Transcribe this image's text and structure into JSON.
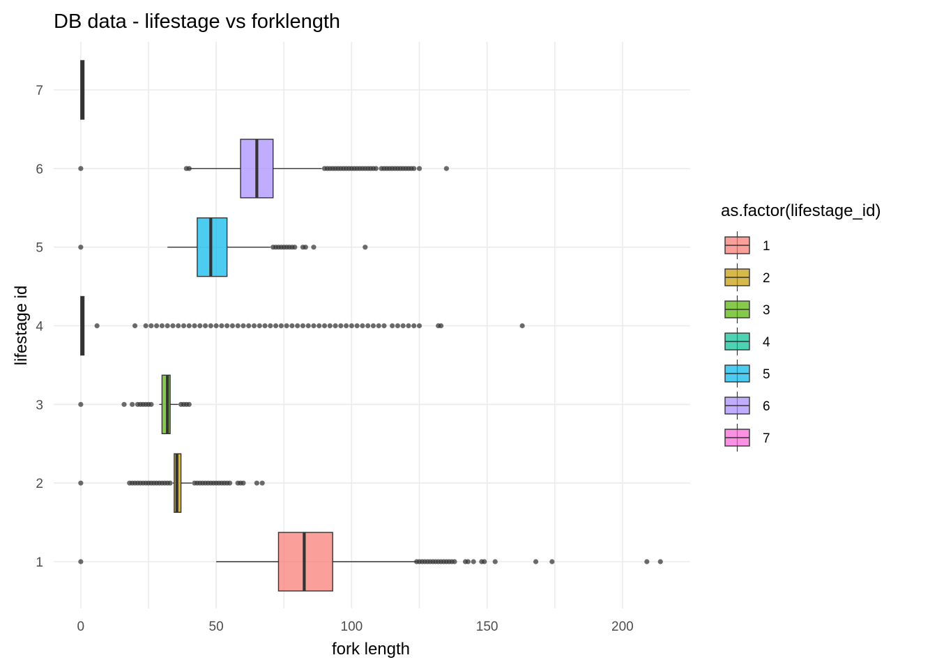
{
  "chart_data": {
    "type": "boxplot",
    "orientation": "horizontal",
    "title": "DB data - lifestage vs forklength",
    "xlabel": "fork length",
    "ylabel": "lifestage id",
    "xlim": [
      -10,
      225
    ],
    "x_ticks": [
      0,
      50,
      100,
      150,
      200
    ],
    "categories": [
      "1",
      "2",
      "3",
      "4",
      "5",
      "6",
      "7"
    ],
    "legend": {
      "title": "as.factor(lifestage_id)",
      "position": "right",
      "entries": [
        "1",
        "2",
        "3",
        "4",
        "5",
        "6",
        "7"
      ]
    },
    "grid": true,
    "series": [
      {
        "category": "1",
        "color": "#F8766D",
        "whisker_low": 50,
        "q1": 73,
        "median": 82.5,
        "q3": 93,
        "whisker_high": 124,
        "outliers": [
          0,
          124,
          125,
          126,
          127,
          128,
          129,
          130,
          131,
          132,
          133,
          134,
          135,
          136,
          137,
          138,
          142,
          143,
          145,
          148,
          149,
          153,
          168,
          174,
          209,
          214
        ]
      },
      {
        "category": "2",
        "color": "#C49A00",
        "whisker_low": 34,
        "q1": 34.5,
        "median": 35.5,
        "q3": 37,
        "whisker_high": 41,
        "outliers": [
          0,
          18,
          19,
          20,
          21,
          22,
          23,
          24,
          25,
          26,
          27,
          28,
          29,
          30,
          31,
          32,
          33,
          42,
          43,
          44,
          45,
          46,
          47,
          48,
          49,
          50,
          51,
          52,
          53,
          54,
          55,
          58,
          59,
          60,
          65,
          67
        ]
      },
      {
        "category": "3",
        "color": "#53B400",
        "whisker_low": 29,
        "q1": 30,
        "median": 32,
        "q3": 33,
        "whisker_high": 36,
        "outliers": [
          0,
          16,
          19,
          21,
          22,
          23,
          24,
          25,
          26,
          37,
          38,
          39,
          40
        ]
      },
      {
        "category": "4",
        "color": "#00C094",
        "whisker_low": 0,
        "q1": 0,
        "median": 0.6,
        "q3": 1.2,
        "whisker_high": 1.2,
        "outliers": [
          6,
          20,
          24,
          26,
          28,
          30,
          32,
          34,
          36,
          38,
          40,
          42,
          44,
          46,
          48,
          50,
          52,
          54,
          56,
          58,
          60,
          62,
          64,
          66,
          68,
          70,
          72,
          74,
          76,
          78,
          80,
          82,
          84,
          86,
          88,
          90,
          92,
          94,
          96,
          98,
          100,
          102,
          104,
          106,
          108,
          110,
          112,
          115,
          117,
          119,
          121,
          123,
          125,
          132,
          133,
          163
        ]
      },
      {
        "category": "5",
        "color": "#00B6EB",
        "whisker_low": 32,
        "q1": 43,
        "median": 48,
        "q3": 54,
        "whisker_high": 70,
        "outliers": [
          0,
          71,
          72,
          73,
          74,
          75,
          76,
          77,
          78,
          79,
          82,
          83,
          86,
          105
        ]
      },
      {
        "category": "6",
        "color": "#A58AFF",
        "whisker_low": 40,
        "q1": 59,
        "median": 65,
        "q3": 71,
        "whisker_high": 89,
        "outliers": [
          0,
          39,
          40,
          90,
          91,
          92,
          93,
          94,
          95,
          96,
          97,
          98,
          99,
          100,
          101,
          102,
          103,
          104,
          105,
          106,
          107,
          108,
          109,
          111,
          112,
          113,
          114,
          115,
          116,
          117,
          118,
          119,
          120,
          121,
          122,
          123,
          125,
          135
        ]
      },
      {
        "category": "7",
        "color": "#FB61D7",
        "whisker_low": 0,
        "q1": 0,
        "median": 0.6,
        "q3": 1.2,
        "whisker_high": 1.2,
        "outliers": []
      }
    ]
  }
}
